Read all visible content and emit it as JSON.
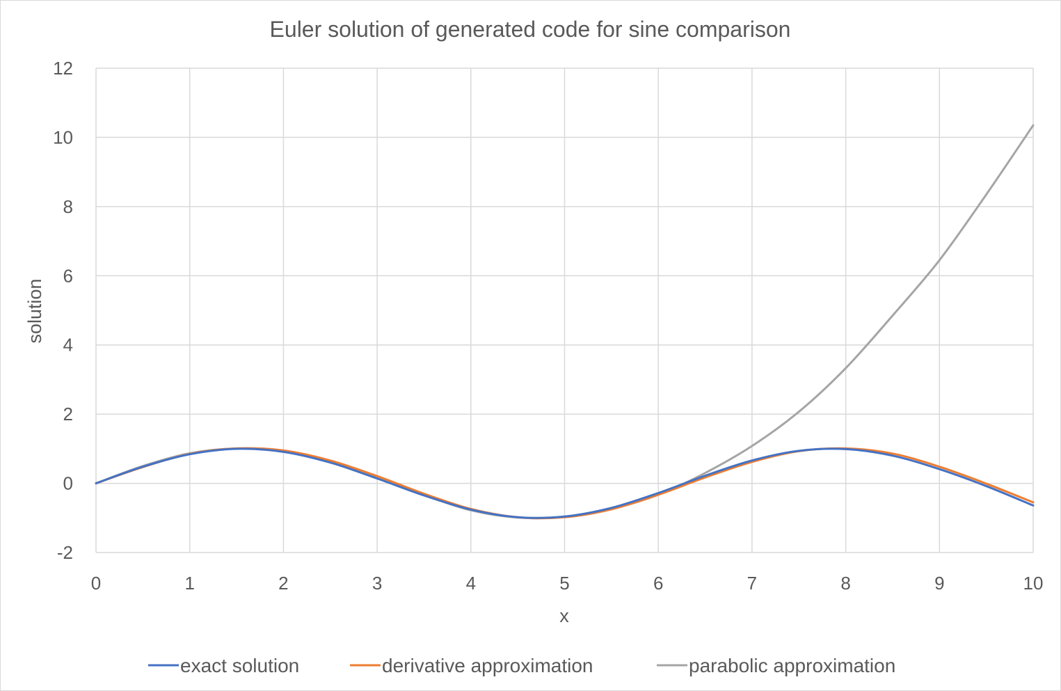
{
  "chart_data": {
    "type": "line",
    "title": "Euler solution of generated code for sine comparison",
    "xlabel": "x",
    "ylabel": "solution",
    "xlim": [
      0,
      10
    ],
    "ylim": [
      -2,
      12
    ],
    "x_ticks": [
      "0",
      "1",
      "2",
      "3",
      "4",
      "5",
      "6",
      "7",
      "8",
      "9",
      "10"
    ],
    "y_ticks": [
      "-2",
      "0",
      "2",
      "4",
      "6",
      "8",
      "10",
      "12"
    ],
    "grid": true,
    "legend_position": "bottom",
    "x": [
      0,
      0.5,
      1,
      1.5,
      2,
      2.5,
      3,
      3.5,
      4,
      4.5,
      5,
      5.5,
      6,
      6.5,
      7,
      7.5,
      8,
      8.5,
      9,
      9.5,
      10
    ],
    "series": [
      {
        "name": "exact solution",
        "color": "#4472c4",
        "values": [
          0,
          0.48,
          0.84,
          0.997,
          0.91,
          0.6,
          0.14,
          -0.35,
          -0.76,
          -0.98,
          -0.96,
          -0.71,
          -0.28,
          0.22,
          0.66,
          0.94,
          0.99,
          0.8,
          0.41,
          -0.08,
          -0.64
        ]
      },
      {
        "name": "derivative approximation",
        "color": "#ed7d31",
        "values": [
          0,
          0.47,
          0.85,
          1.01,
          0.95,
          0.66,
          0.21,
          -0.3,
          -0.74,
          -0.98,
          -0.98,
          -0.75,
          -0.33,
          0.17,
          0.62,
          0.93,
          1.01,
          0.86,
          0.48,
          -0.01,
          -0.55
        ]
      },
      {
        "name": "parabolic approximation",
        "color": "#a5a5a5",
        "values": [
          0,
          0.5,
          0.87,
          1.01,
          0.95,
          0.64,
          0.2,
          -0.33,
          -0.78,
          -0.99,
          -0.97,
          -0.74,
          -0.33,
          0.3,
          1.08,
          2.07,
          3.33,
          4.85,
          6.45,
          8.35,
          10.35
        ]
      }
    ]
  }
}
